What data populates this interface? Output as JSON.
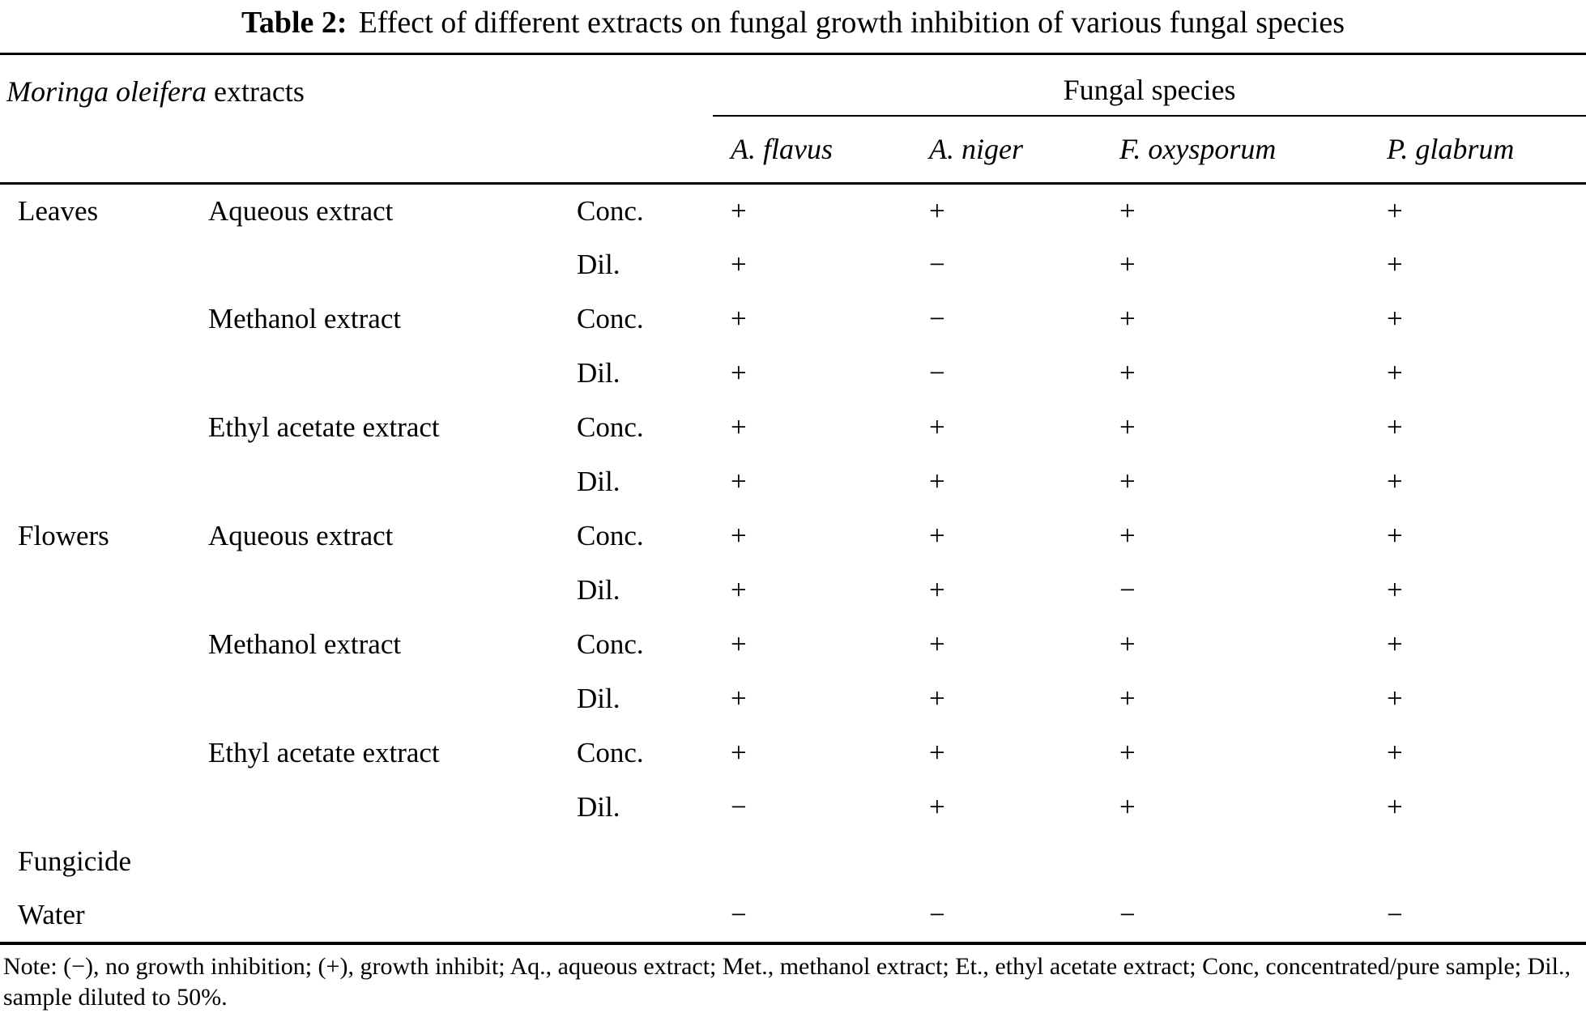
{
  "title": {
    "label": "Table 2:",
    "text": "Effect of different extracts on fungal growth inhibition of various fungal species"
  },
  "header": {
    "col1_italic": "Moringa oleifera",
    "col1_rest": " extracts",
    "group": "Fungal species",
    "species": [
      "A. flavus",
      "A. niger",
      "F. oxysporum",
      "P. glabrum"
    ]
  },
  "rows": [
    {
      "part": "Leaves",
      "extract": "Aqueous extract",
      "prep": "Conc.",
      "values": [
        "+",
        "+",
        "+",
        "+"
      ]
    },
    {
      "part": "",
      "extract": "",
      "prep": "Dil.",
      "values": [
        "+",
        "−",
        "+",
        "+"
      ]
    },
    {
      "part": "",
      "extract": "Methanol extract",
      "prep": "Conc.",
      "values": [
        "+",
        "−",
        "+",
        "+"
      ]
    },
    {
      "part": "",
      "extract": "",
      "prep": "Dil.",
      "values": [
        "+",
        "−",
        "+",
        "+"
      ]
    },
    {
      "part": "",
      "extract": "Ethyl acetate extract",
      "prep": "Conc.",
      "values": [
        "+",
        "+",
        "+",
        "+"
      ]
    },
    {
      "part": "",
      "extract": "",
      "prep": "Dil.",
      "values": [
        "+",
        "+",
        "+",
        "+"
      ]
    },
    {
      "part": "Flowers",
      "extract": "Aqueous extract",
      "prep": "Conc.",
      "values": [
        "+",
        "+",
        "+",
        "+"
      ]
    },
    {
      "part": "",
      "extract": "",
      "prep": "Dil.",
      "values": [
        "+",
        "+",
        "−",
        "+"
      ]
    },
    {
      "part": "",
      "extract": "Methanol extract",
      "prep": "Conc.",
      "values": [
        "+",
        "+",
        "+",
        "+"
      ]
    },
    {
      "part": "",
      "extract": "",
      "prep": "Dil.",
      "values": [
        "+",
        "+",
        "+",
        "+"
      ]
    },
    {
      "part": "",
      "extract": "Ethyl acetate extract",
      "prep": "Conc.",
      "values": [
        "+",
        "+",
        "+",
        "+"
      ]
    },
    {
      "part": "",
      "extract": "",
      "prep": "Dil.",
      "values": [
        "−",
        "+",
        "+",
        "+"
      ]
    },
    {
      "part": "Fungicide",
      "extract": "",
      "prep": "",
      "values": [
        "",
        "",
        "",
        ""
      ]
    },
    {
      "part": "Water",
      "extract": "",
      "prep": "",
      "values": [
        "−",
        "−",
        "−",
        "−"
      ]
    }
  ],
  "note": {
    "text": "Note: (−), no growth inhibition; (+), growth inhibit; Aq., aqueous extract; Met., methanol extract; Et., ethyl acetate extract; Conc, concentrated/pure sample; Dil., sample diluted to 50%."
  }
}
